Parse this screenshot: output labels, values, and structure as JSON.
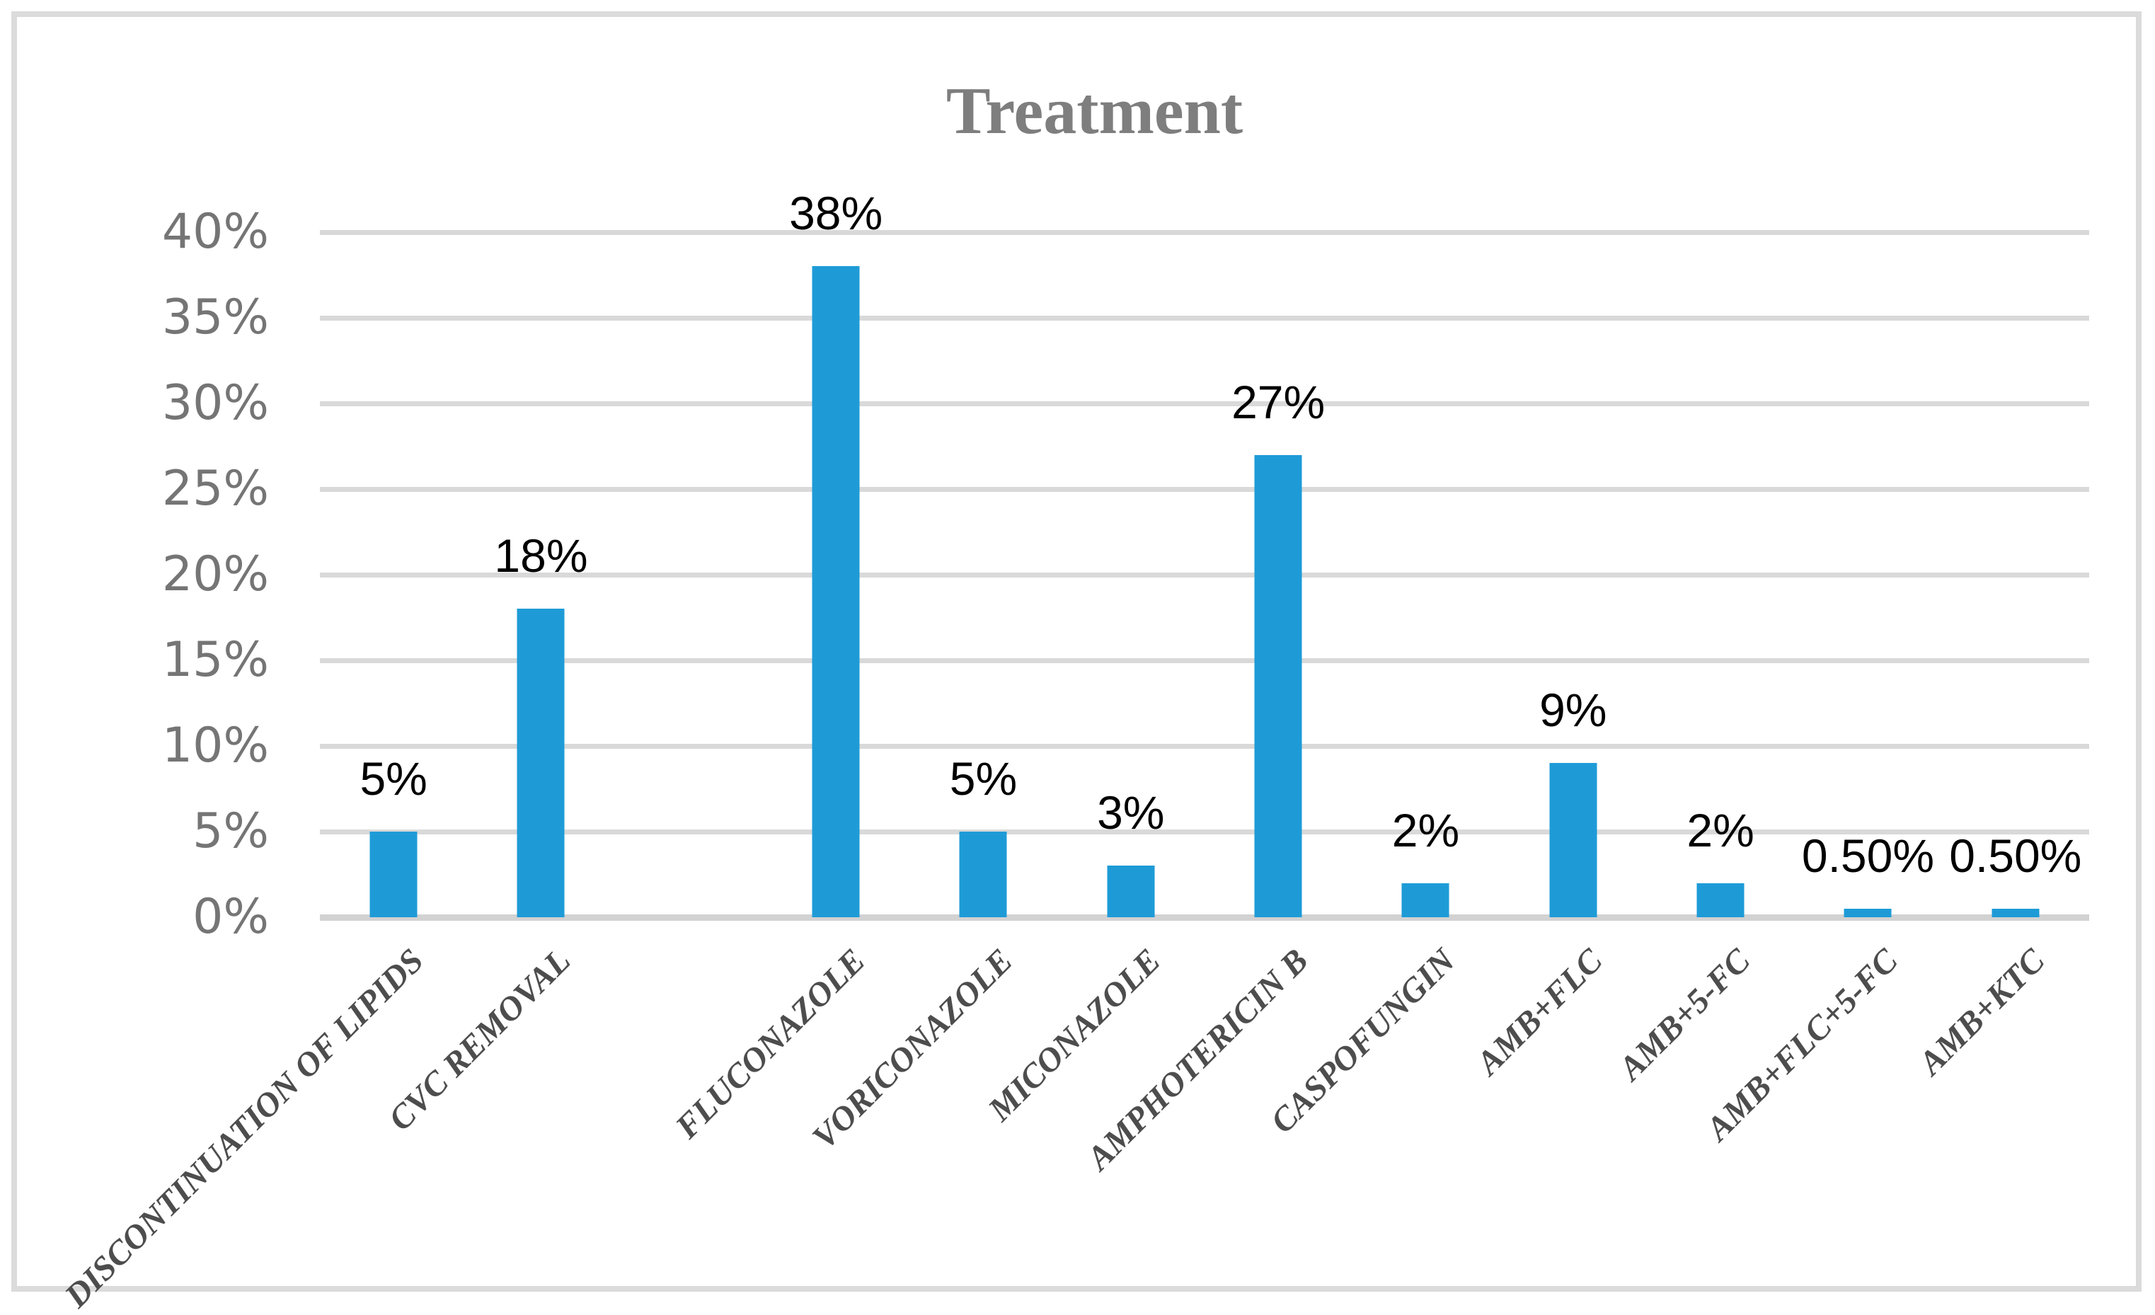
{
  "colors": {
    "bar": "#1E9BD7",
    "grid": "#D9D9D9",
    "axis_line": "#D2D2D2",
    "frame_border": "#DBDBDB",
    "title_text": "#7E7E7E",
    "tick_text": "#757575",
    "category_text": "#4D4D4D",
    "data_label_text": "#000000",
    "background": "#FFFFFF"
  },
  "y_axis": {
    "min": 0,
    "max": 40,
    "step": 5,
    "ticks": [
      "40%",
      "35%",
      "30%",
      "25%",
      "20%",
      "15%",
      "10%",
      "5%",
      "0%"
    ]
  },
  "chart_data": {
    "type": "bar",
    "title": "Treatment",
    "categories": [
      "DISCONTINUATION OF LIPIDS",
      "CVC REMOVAL",
      "",
      "FLUCONAZOLE",
      "VORICONAZOLE",
      "MICONAZOLE",
      "AMPHOTERICIN B",
      "CASPOFUNGIN",
      "AMB+FLC",
      "AMB+5-FC",
      "AMB+FLC+5-FC",
      "AMB+KTC"
    ],
    "values": [
      5,
      18,
      null,
      38,
      5,
      3,
      27,
      2,
      9,
      2,
      0.5,
      0.5
    ],
    "data_labels": [
      "5%",
      "18%",
      "",
      "38%",
      "5%",
      "3%",
      "27%",
      "2%",
      "9%",
      "2%",
      "0.50%",
      "0.50%"
    ],
    "xlabel": "",
    "ylabel": "",
    "ylim": [
      0,
      40
    ],
    "grid": true,
    "legend": false,
    "category_label_rotation_deg": 45
  }
}
